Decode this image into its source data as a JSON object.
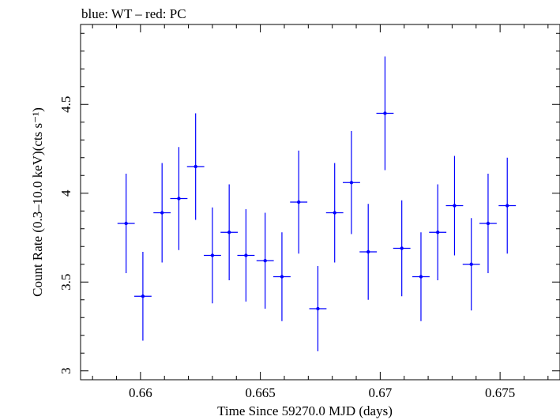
{
  "header": "blue: WT – red: PC",
  "chart_data": {
    "type": "scatter",
    "xlabel": "Time Since 59270.0 MJD (days)",
    "ylabel": "Count Rate (0.3–10.0 keV)(cts s⁻¹)",
    "xlim": [
      0.6575,
      0.6775
    ],
    "ylim": [
      2.95,
      4.95
    ],
    "xticks": [
      0.66,
      0.665,
      0.67,
      0.675
    ],
    "xtick_labels": [
      "0.66",
      "0.665",
      "0.67",
      "0.675"
    ],
    "yticks": [
      3,
      3.5,
      4,
      4.5
    ],
    "ytick_labels": [
      "3",
      "3.5",
      "4",
      "4.5"
    ],
    "grid": false,
    "series": [
      {
        "color": "#0000ff",
        "x_halfwidth": 0.00036,
        "points": [
          {
            "x": 0.6594,
            "y": 3.83,
            "err": 0.28
          },
          {
            "x": 0.6601,
            "y": 3.42,
            "err": 0.25
          },
          {
            "x": 0.6609,
            "y": 3.89,
            "err": 0.28
          },
          {
            "x": 0.6616,
            "y": 3.97,
            "err": 0.29
          },
          {
            "x": 0.6623,
            "y": 4.15,
            "err": 0.3
          },
          {
            "x": 0.663,
            "y": 3.65,
            "err": 0.27
          },
          {
            "x": 0.6637,
            "y": 3.78,
            "err": 0.27
          },
          {
            "x": 0.6644,
            "y": 3.65,
            "err": 0.26
          },
          {
            "x": 0.6652,
            "y": 3.62,
            "err": 0.27
          },
          {
            "x": 0.6659,
            "y": 3.53,
            "err": 0.25
          },
          {
            "x": 0.6666,
            "y": 3.95,
            "err": 0.29
          },
          {
            "x": 0.6674,
            "y": 3.35,
            "err": 0.24
          },
          {
            "x": 0.6681,
            "y": 3.89,
            "err": 0.28
          },
          {
            "x": 0.6688,
            "y": 4.06,
            "err": 0.29
          },
          {
            "x": 0.6695,
            "y": 3.67,
            "err": 0.27
          },
          {
            "x": 0.6702,
            "y": 4.45,
            "err": 0.32
          },
          {
            "x": 0.6709,
            "y": 3.69,
            "err": 0.27
          },
          {
            "x": 0.6717,
            "y": 3.53,
            "err": 0.25
          },
          {
            "x": 0.6724,
            "y": 3.78,
            "err": 0.27
          },
          {
            "x": 0.6731,
            "y": 3.93,
            "err": 0.28
          },
          {
            "x": 0.6738,
            "y": 3.6,
            "err": 0.26
          },
          {
            "x": 0.6745,
            "y": 3.83,
            "err": 0.28
          },
          {
            "x": 0.6753,
            "y": 3.93,
            "err": 0.27
          }
        ]
      }
    ]
  }
}
